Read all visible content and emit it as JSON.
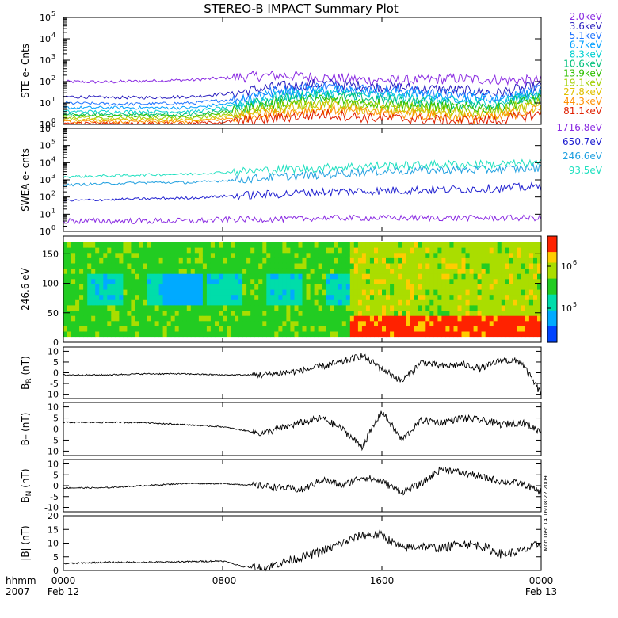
{
  "title": "STEREO-B IMPACT Summary Plot",
  "chart_data": [
    {
      "id": "ste",
      "type": "line",
      "ylabel": "STE e- Cnts",
      "yscale": "log",
      "ylim": [
        1,
        100000
      ],
      "yticks": [
        "10",
        "10",
        "10",
        "10",
        "10",
        "10"
      ],
      "ytick_exponents": [
        "0",
        "1",
        "2",
        "3",
        "4",
        "5"
      ],
      "series": [
        {
          "name": "2.0keV",
          "color": "#8a2be2",
          "values": [
            100,
            95,
            110,
            120,
            160,
            200,
            150,
            120,
            110,
            140,
            120,
            110
          ]
        },
        {
          "name": "3.6keV",
          "color": "#2b1fbf",
          "values": [
            20,
            18,
            18,
            20,
            30,
            60,
            80,
            60,
            50,
            40,
            30,
            60
          ]
        },
        {
          "name": "5.1keV",
          "color": "#1e73ff",
          "values": [
            10,
            9,
            9,
            10,
            15,
            40,
            60,
            45,
            35,
            25,
            20,
            40
          ]
        },
        {
          "name": "6.7keV",
          "color": "#00a0ff",
          "values": [
            6,
            6,
            6,
            6,
            10,
            30,
            40,
            30,
            25,
            18,
            15,
            30
          ]
        },
        {
          "name": "8.3keV",
          "color": "#00d0d0",
          "values": [
            4,
            4,
            4,
            4,
            7,
            20,
            30,
            22,
            18,
            12,
            10,
            25
          ]
        },
        {
          "name": "10.6keV",
          "color": "#00c07a",
          "values": [
            3,
            3,
            3,
            3,
            5,
            15,
            22,
            16,
            12,
            8,
            8,
            20
          ]
        },
        {
          "name": "13.9keV",
          "color": "#2ec000",
          "values": [
            2.5,
            2.5,
            2.5,
            2.5,
            4,
            10,
            15,
            10,
            8,
            6,
            6,
            15
          ]
        },
        {
          "name": "19.1keV",
          "color": "#a0d000",
          "values": [
            2,
            2,
            2,
            2,
            3,
            7,
            10,
            7,
            6,
            4,
            4,
            10
          ]
        },
        {
          "name": "27.8keV",
          "color": "#e0c000",
          "values": [
            1.6,
            1.6,
            1.6,
            1.6,
            2.5,
            5,
            7,
            5,
            4,
            3,
            3,
            7
          ]
        },
        {
          "name": "44.3keV",
          "color": "#ff9000",
          "values": [
            1.3,
            1.3,
            1.3,
            1.3,
            2,
            3.5,
            5,
            3.5,
            3,
            2,
            2,
            5
          ]
        },
        {
          "name": "81.1keV",
          "color": "#e02000",
          "values": [
            1.1,
            1.1,
            1.1,
            1.1,
            1.4,
            2,
            3,
            2,
            1.8,
            1.5,
            1.5,
            3
          ]
        }
      ]
    },
    {
      "id": "swea",
      "type": "line",
      "ylabel": "SWEA e- cnts",
      "yscale": "log",
      "ylim": [
        1,
        1000000
      ],
      "yticks": [
        "10",
        "10",
        "10",
        "10",
        "10",
        "10",
        "10"
      ],
      "ytick_exponents": [
        "0",
        "1",
        "2",
        "3",
        "4",
        "5",
        "6"
      ],
      "series": [
        {
          "name": "1716.8eV",
          "color": "#8a2be2",
          "values": [
            4,
            4,
            4,
            4,
            5,
            5,
            6,
            6,
            6,
            6,
            6,
            6
          ]
        },
        {
          "name": "650.7eV",
          "color": "#2020d0",
          "values": [
            60,
            70,
            80,
            90,
            120,
            150,
            200,
            220,
            250,
            280,
            320,
            400
          ]
        },
        {
          "name": "246.6eV",
          "color": "#20a0e0",
          "values": [
            500,
            600,
            700,
            700,
            1000,
            1500,
            2000,
            3000,
            3500,
            3800,
            4000,
            5000
          ]
        },
        {
          "name": "93.5eV",
          "color": "#20e0c0",
          "values": [
            1500,
            1700,
            2000,
            2200,
            3000,
            4000,
            5000,
            6500,
            7000,
            8000,
            8000,
            9000
          ]
        }
      ]
    },
    {
      "id": "pad",
      "type": "heatmap",
      "ylabel": "246.6 eV",
      "ylim": [
        0,
        180
      ],
      "yticks": [
        0,
        50,
        100,
        150
      ],
      "colorbar_labels": [
        "10",
        "10"
      ],
      "colorbar_exponents": [
        "6",
        "5"
      ]
    },
    {
      "id": "br",
      "type": "line",
      "ylabel": "B",
      "ylabel_sub": "R",
      "ylabel_unit": " (nT)",
      "ylim": [
        -12,
        12
      ],
      "yticks": [
        -10,
        -5,
        0,
        5,
        10
      ],
      "x": [
        0,
        2,
        4,
        6,
        8,
        10,
        12,
        13,
        14,
        15,
        16,
        17,
        18,
        19,
        20,
        21,
        22,
        23,
        24
      ],
      "values": [
        -1,
        -1,
        -0.5,
        -0.5,
        -1,
        -1,
        1,
        3,
        5,
        8,
        2,
        -4,
        5,
        3,
        4,
        2,
        6,
        5,
        -10
      ]
    },
    {
      "id": "bt",
      "type": "line",
      "ylabel": "B",
      "ylabel_sub": "T",
      "ylabel_unit": " (nT)",
      "ylim": [
        -12,
        12
      ],
      "yticks": [
        -10,
        -5,
        0,
        5,
        10
      ],
      "x": [
        0,
        2,
        4,
        6,
        8,
        10,
        12,
        13,
        14,
        15,
        16,
        17,
        18,
        19,
        20,
        21,
        22,
        23,
        24
      ],
      "values": [
        3,
        3,
        3,
        2,
        1,
        -2,
        3,
        5,
        0,
        -8,
        8,
        -5,
        4,
        3,
        5,
        4,
        2,
        3,
        -1
      ]
    },
    {
      "id": "bn",
      "type": "line",
      "ylabel": "B",
      "ylabel_sub": "N",
      "ylabel_unit": " (nT)",
      "ylim": [
        -12,
        12
      ],
      "yticks": [
        -10,
        -5,
        0,
        5,
        10
      ],
      "x": [
        0,
        2,
        4,
        6,
        8,
        10,
        12,
        13,
        14,
        15,
        16,
        17,
        18,
        19,
        20,
        21,
        22,
        23,
        24
      ],
      "values": [
        -1,
        -1,
        0,
        1,
        1,
        0,
        -2,
        3,
        0,
        4,
        2,
        -3,
        1,
        8,
        6,
        4,
        2,
        1,
        -3
      ]
    },
    {
      "id": "bmag",
      "type": "line",
      "ylabel": "|B| (nT)",
      "ylim": [
        0,
        20
      ],
      "yticks": [
        0,
        5,
        10,
        15,
        20
      ],
      "x": [
        0,
        2,
        4,
        6,
        8,
        9,
        10,
        11,
        12,
        13,
        14,
        15,
        16,
        17,
        18,
        19,
        20,
        21,
        22,
        23,
        24
      ],
      "values": [
        2.5,
        3,
        3,
        3.2,
        3.5,
        1.5,
        0.8,
        3,
        5,
        7,
        10,
        13,
        13,
        8,
        9,
        8,
        10,
        9,
        6,
        7,
        10
      ]
    }
  ],
  "xaxis": {
    "range_hours": [
      0,
      24
    ],
    "ticks": [
      {
        "hour": 0,
        "top": "0000",
        "bottom": "Feb 12"
      },
      {
        "hour": 8,
        "top": "0800",
        "bottom": ""
      },
      {
        "hour": 16,
        "top": "1600",
        "bottom": ""
      },
      {
        "hour": 24,
        "top": "0000",
        "bottom": "Feb 13"
      }
    ],
    "corner_label_top": "hhmm",
    "corner_label_bottom": "2007"
  },
  "stamp": "Mon Dec 14 16:08:22 2009"
}
